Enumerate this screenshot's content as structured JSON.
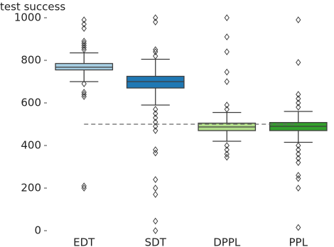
{
  "chart_data": {
    "type": "box",
    "ylabel": "test success",
    "categories": [
      "EDT",
      "SDT",
      "DPPL",
      "PPL"
    ],
    "boxes": [
      {
        "color": "#a6cee3",
        "whisker_low": 700,
        "q1": 755,
        "median": 768,
        "q3": 785,
        "whisker_high": 835,
        "outliers": [
          200,
          210,
          630,
          640,
          650,
          690,
          850,
          860,
          870,
          880,
          890,
          950,
          970,
          990
        ]
      },
      {
        "color": "#1f78b4",
        "whisker_low": 590,
        "q1": 670,
        "median": 700,
        "q3": 725,
        "whisker_high": 805,
        "outliers": [
          0,
          45,
          170,
          200,
          240,
          365,
          380,
          470,
          490,
          510,
          530,
          550,
          570,
          820,
          840,
          850,
          980,
          1000
        ]
      },
      {
        "color": "#b2df8a",
        "whisker_low": 420,
        "q1": 470,
        "median": 487,
        "q3": 505,
        "whisker_high": 555,
        "outliers": [
          345,
          360,
          380,
          400,
          570,
          590,
          700,
          745,
          840,
          910,
          1000
        ]
      },
      {
        "color": "#33a02c",
        "whisker_low": 415,
        "q1": 470,
        "median": 490,
        "q3": 508,
        "whisker_high": 560,
        "outliers": [
          15,
          200,
          245,
          260,
          320,
          340,
          360,
          380,
          400,
          580,
          600,
          620,
          640,
          790,
          990
        ]
      }
    ],
    "reference_line": 500,
    "ylim": [
      0,
      1000
    ],
    "yticks": [
      0,
      200,
      400,
      600,
      800,
      1000
    ]
  }
}
